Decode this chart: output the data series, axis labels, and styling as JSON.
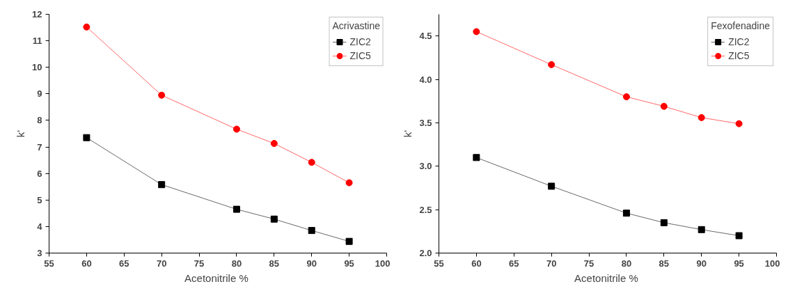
{
  "chart_data": [
    {
      "type": "line",
      "legend_title": "Acrivastine",
      "xlabel": "Acetonitrile  %",
      "ylabel": "k'",
      "x": [
        60,
        70,
        80,
        85,
        90,
        95
      ],
      "xlim": [
        55,
        100
      ],
      "xticks": [
        55,
        60,
        65,
        70,
        75,
        80,
        85,
        90,
        95,
        100
      ],
      "ylim": [
        3,
        12
      ],
      "yticks": [
        3,
        4,
        5,
        6,
        7,
        8,
        9,
        10,
        11,
        12
      ],
      "grid": false,
      "legend": "top right",
      "series": [
        {
          "name": "ZIC2",
          "color": "#000000",
          "marker": "square",
          "values": [
            7.35,
            5.58,
            4.65,
            4.28,
            3.85,
            3.44
          ]
        },
        {
          "name": "ZIC5",
          "color": "#ff0000",
          "marker": "circle",
          "values": [
            11.52,
            8.95,
            7.67,
            7.13,
            6.42,
            5.65
          ]
        }
      ]
    },
    {
      "type": "line",
      "legend_title": "Fexofenadine",
      "xlabel": "Acetonitrile  %",
      "ylabel": "k'",
      "x": [
        60,
        70,
        80,
        85,
        90,
        95
      ],
      "xlim": [
        55,
        100
      ],
      "xticks": [
        55,
        60,
        65,
        70,
        75,
        80,
        85,
        90,
        95,
        100
      ],
      "ylim": [
        2.0,
        4.75
      ],
      "yticks": [
        {
          "value": 2.0,
          "label": "2.0"
        },
        2.5,
        {
          "value": 3.0,
          "label": "3.0"
        },
        3.5,
        {
          "value": 4.0,
          "label": "4.0"
        },
        4.5
      ],
      "grid": false,
      "legend": "top right",
      "series": [
        {
          "name": "ZIC2",
          "color": "#000000",
          "marker": "square",
          "values": [
            3.1,
            2.77,
            2.46,
            2.35,
            2.27,
            2.2
          ]
        },
        {
          "name": "ZIC5",
          "color": "#ff0000",
          "marker": "circle",
          "values": [
            4.55,
            4.17,
            3.8,
            3.69,
            3.56,
            3.49
          ]
        }
      ]
    }
  ]
}
